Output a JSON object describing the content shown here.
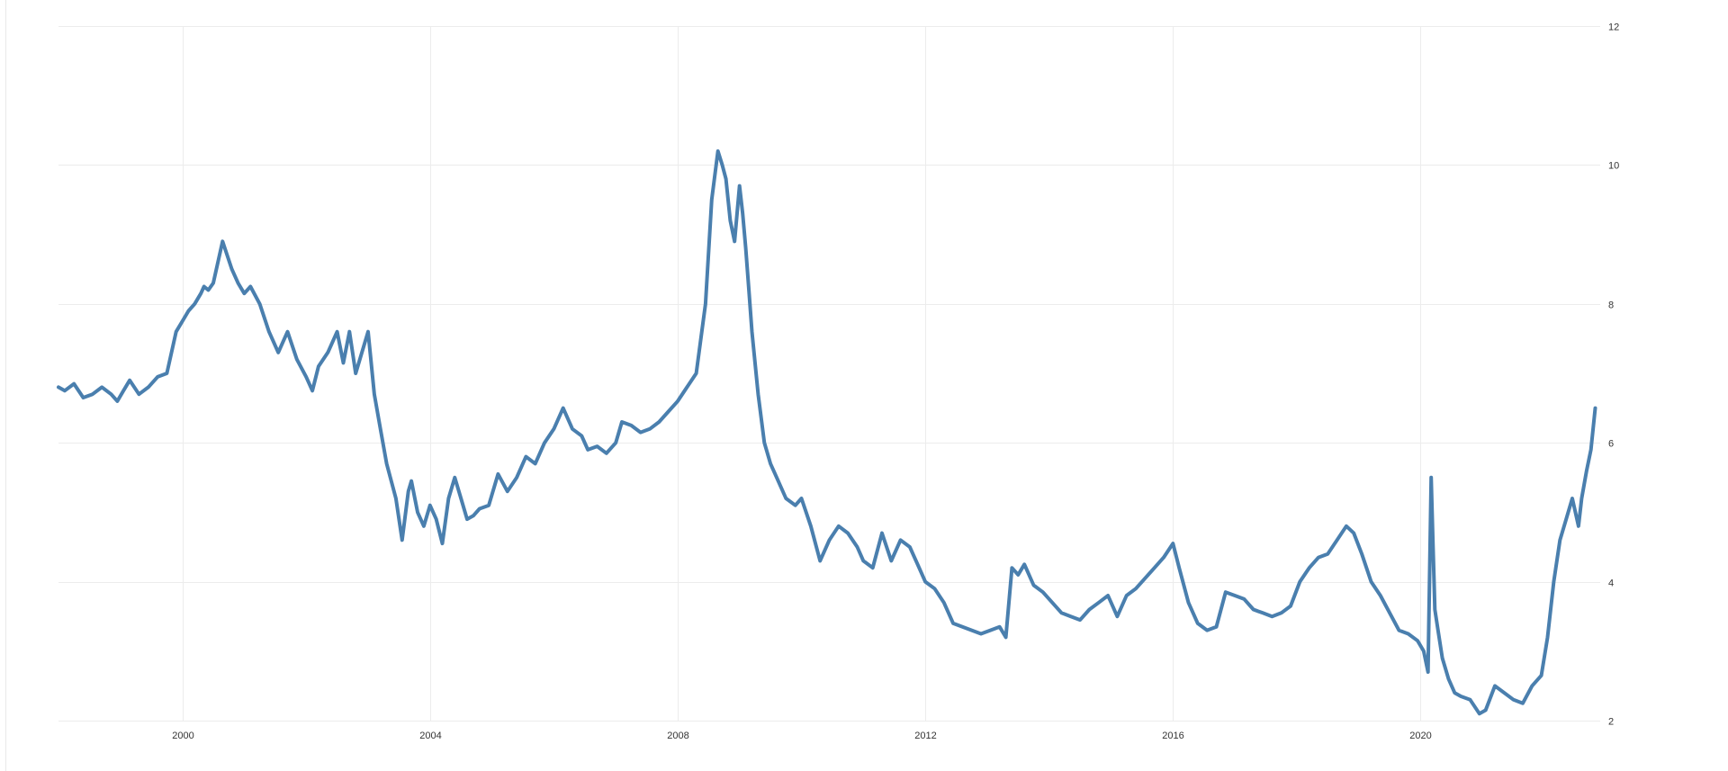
{
  "chart_data": {
    "type": "line",
    "title": "",
    "xlabel": "",
    "ylabel": "",
    "xlim": [
      1998.0,
      2022.9
    ],
    "ylim": [
      2,
      12
    ],
    "x_ticks": [
      "2000",
      "2004",
      "2008",
      "2012",
      "2016",
      "2020"
    ],
    "y_ticks": [
      "2",
      "4",
      "6",
      "8",
      "10",
      "12"
    ],
    "grid": true,
    "legend": "none",
    "series": [
      {
        "color": "#4a7fae",
        "x": [
          1998.0,
          1998.1,
          1998.25,
          1998.4,
          1998.55,
          1998.7,
          1998.85,
          1998.95,
          1999.05,
          1999.15,
          1999.3,
          1999.45,
          1999.6,
          1999.75,
          1999.9,
          2000.0,
          2000.1,
          2000.2,
          2000.3,
          2000.35,
          2000.42,
          2000.5,
          2000.65,
          2000.8,
          2000.9,
          2001.0,
          2001.1,
          2001.25,
          2001.4,
          2001.55,
          2001.7,
          2001.85,
          2002.0,
          2002.1,
          2002.2,
          2002.35,
          2002.5,
          2002.6,
          2002.7,
          2002.8,
          2002.9,
          2003.0,
          2003.1,
          2003.2,
          2003.3,
          2003.45,
          2003.55,
          2003.65,
          2003.7,
          2003.8,
          2003.9,
          2004.0,
          2004.1,
          2004.2,
          2004.3,
          2004.4,
          2004.5,
          2004.6,
          2004.7,
          2004.8,
          2004.95,
          2005.1,
          2005.25,
          2005.4,
          2005.55,
          2005.7,
          2005.85,
          2006.0,
          2006.15,
          2006.3,
          2006.45,
          2006.55,
          2006.7,
          2006.85,
          2007.0,
          2007.1,
          2007.25,
          2007.4,
          2007.55,
          2007.7,
          2007.85,
          2008.0,
          2008.15,
          2008.3,
          2008.45,
          2008.55,
          2008.65,
          2008.72,
          2008.78,
          2008.85,
          2008.92,
          2009.0,
          2009.05,
          2009.1,
          2009.15,
          2009.2,
          2009.3,
          2009.4,
          2009.5,
          2009.6,
          2009.75,
          2009.9,
          2010.0,
          2010.15,
          2010.3,
          2010.45,
          2010.6,
          2010.75,
          2010.9,
          2011.0,
          2011.15,
          2011.3,
          2011.45,
          2011.6,
          2011.75,
          2011.9,
          2012.0,
          2012.15,
          2012.3,
          2012.45,
          2012.6,
          2012.75,
          2012.9,
          2013.05,
          2013.2,
          2013.3,
          2013.4,
          2013.5,
          2013.6,
          2013.75,
          2013.9,
          2014.05,
          2014.2,
          2014.35,
          2014.5,
          2014.65,
          2014.8,
          2014.95,
          2015.1,
          2015.25,
          2015.4,
          2015.55,
          2015.7,
          2015.85,
          2016.0,
          2016.1,
          2016.25,
          2016.4,
          2016.55,
          2016.7,
          2016.85,
          2017.0,
          2017.15,
          2017.3,
          2017.45,
          2017.6,
          2017.75,
          2017.9,
          2018.05,
          2018.2,
          2018.35,
          2018.5,
          2018.65,
          2018.8,
          2018.92,
          2019.05,
          2019.2,
          2019.35,
          2019.5,
          2019.65,
          2019.8,
          2019.95,
          2020.05,
          2020.12,
          2020.17,
          2020.2,
          2020.23,
          2020.28,
          2020.35,
          2020.45,
          2020.55,
          2020.65,
          2020.8,
          2020.95,
          2021.05,
          2021.2,
          2021.35,
          2021.5,
          2021.65,
          2021.8,
          2021.95,
          2022.05,
          2022.15,
          2022.25,
          2022.35,
          2022.45,
          2022.55,
          2022.6,
          2022.68,
          2022.75,
          2022.82
        ],
        "values": [
          6.8,
          6.75,
          6.85,
          6.65,
          6.7,
          6.8,
          6.7,
          6.6,
          6.75,
          6.9,
          6.7,
          6.8,
          6.95,
          7.0,
          7.6,
          7.75,
          7.9,
          8.0,
          8.15,
          8.25,
          8.2,
          8.3,
          8.9,
          8.5,
          8.3,
          8.15,
          8.25,
          8.0,
          7.6,
          7.3,
          7.6,
          7.2,
          6.95,
          6.75,
          7.1,
          7.3,
          7.6,
          7.15,
          7.6,
          7.0,
          7.3,
          7.6,
          6.7,
          6.2,
          5.7,
          5.2,
          4.6,
          5.3,
          5.45,
          5.0,
          4.8,
          5.1,
          4.9,
          4.55,
          5.2,
          5.5,
          5.2,
          4.9,
          4.95,
          5.05,
          5.1,
          5.55,
          5.3,
          5.5,
          5.8,
          5.7,
          6.0,
          6.2,
          6.5,
          6.2,
          6.1,
          5.9,
          5.95,
          5.85,
          6.0,
          6.3,
          6.25,
          6.15,
          6.2,
          6.3,
          6.45,
          6.6,
          6.8,
          7.0,
          8.0,
          9.5,
          10.2,
          10.0,
          9.8,
          9.2,
          8.9,
          9.7,
          9.3,
          8.8,
          8.2,
          7.6,
          6.7,
          6.0,
          5.7,
          5.5,
          5.2,
          5.1,
          5.2,
          4.8,
          4.3,
          4.6,
          4.8,
          4.7,
          4.5,
          4.3,
          4.2,
          4.7,
          4.3,
          4.6,
          4.5,
          4.2,
          4.0,
          3.9,
          3.7,
          3.4,
          3.35,
          3.3,
          3.25,
          3.3,
          3.35,
          3.2,
          4.2,
          4.1,
          4.25,
          3.95,
          3.85,
          3.7,
          3.55,
          3.5,
          3.45,
          3.6,
          3.7,
          3.8,
          3.5,
          3.8,
          3.9,
          4.05,
          4.2,
          4.35,
          4.55,
          4.2,
          3.7,
          3.4,
          3.3,
          3.35,
          3.85,
          3.8,
          3.75,
          3.6,
          3.55,
          3.5,
          3.55,
          3.65,
          4.0,
          4.2,
          4.35,
          4.4,
          4.6,
          4.8,
          4.7,
          4.4,
          4.0,
          3.8,
          3.55,
          3.3,
          3.25,
          3.15,
          3.0,
          2.7,
          5.5,
          4.5,
          3.6,
          3.3,
          2.9,
          2.6,
          2.4,
          2.35,
          2.3,
          2.1,
          2.15,
          2.5,
          2.4,
          2.3,
          2.25,
          2.5,
          2.65,
          3.2,
          4.0,
          4.6,
          4.9,
          5.2,
          4.8,
          5.2,
          5.6,
          5.9,
          6.5
        ]
      }
    ]
  }
}
